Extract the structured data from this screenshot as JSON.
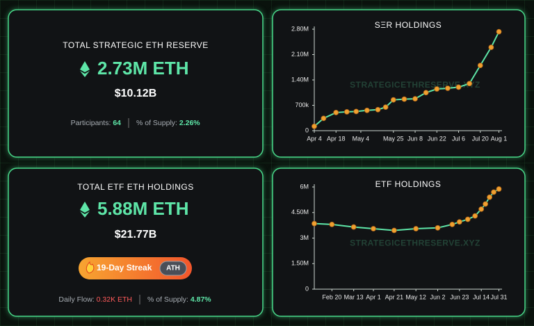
{
  "reserve_card": {
    "title": "TOTAL STRATEGIC ETH RESERVE",
    "amount": "2.73M ETH",
    "usd": "$10.12B",
    "participants_label": "Participants:",
    "participants": 64,
    "supply_label": "% of Supply:",
    "supply": "2.26%"
  },
  "etf_card": {
    "title": "TOTAL ETF ETH HOLDINGS",
    "amount": "5.88M ETH",
    "usd": "$21.77B",
    "streak": "19-Day Streak",
    "badge": "ATH",
    "flow_label": "Daily Flow:",
    "flow": "0.32K ETH",
    "supply_label": "% of Supply:",
    "supply": "4.87%"
  },
  "chart_data": [
    {
      "type": "line",
      "title": "SΞR HOLDINGS",
      "watermark": "STRATEGICETHRESERVE.XYZ",
      "color": "#5ee6a8",
      "marker_color": "#f0a030",
      "x": [
        "Apr 4",
        "Apr 10",
        "Apr 18",
        "Apr 25",
        "May 1",
        "May 8",
        "May 15",
        "May 20",
        "May 25",
        "Jun 1",
        "Jun 8",
        "Jun 15",
        "Jun 22",
        "Jun 29",
        "Jul 6",
        "Jul 13",
        "Jul 20",
        "Jul 27",
        "Aug 1"
      ],
      "values": [
        120000,
        340000,
        500000,
        520000,
        530000,
        560000,
        580000,
        650000,
        850000,
        870000,
        880000,
        1050000,
        1150000,
        1170000,
        1200000,
        1300000,
        1800000,
        2300000,
        2730000
      ],
      "xlim": [
        "Apr 4",
        "Aug 3"
      ],
      "xticks": [
        "Apr 4",
        "Apr 18",
        "May 4",
        "May 25",
        "Jun 8",
        "Jun 22",
        "Jul 6",
        "Jul 20",
        "Aug 1"
      ],
      "ylim": [
        0,
        2800000
      ],
      "yticks": [
        0,
        {
          "value": 700000,
          "label": "700k"
        },
        {
          "value": 1400000,
          "label": "1.40M"
        },
        {
          "value": 2100000,
          "label": "2.10M"
        },
        {
          "value": 2800000,
          "label": "2.80M"
        }
      ]
    },
    {
      "type": "line",
      "title": "ETF HOLDINGS",
      "watermark": "STRATEGICETHRESERVE.XYZ",
      "color": "#5ee6a8",
      "marker_color": "#f0a030",
      "x": [
        "Feb 3",
        "Feb 20",
        "Mar 13",
        "Apr 1",
        "Apr 21",
        "May 12",
        "Jun 2",
        "Jun 16",
        "Jun 23",
        "Jul 1",
        "Jul 8",
        "Jul 14",
        "Jul 18",
        "Jul 22",
        "Jul 26",
        "Jul 31"
      ],
      "values": [
        3850000,
        3800000,
        3650000,
        3550000,
        3450000,
        3550000,
        3600000,
        3800000,
        3950000,
        4100000,
        4300000,
        4700000,
        5000000,
        5400000,
        5700000,
        5880000
      ],
      "xlim": [
        "Feb 3",
        "Aug 3"
      ],
      "xticks": [
        "Feb 20",
        "Mar 13",
        "Apr 1",
        "Apr 21",
        "May 12",
        "Jun 2",
        "Jun 23",
        "Jul 14",
        "Jul 31"
      ],
      "ylim": [
        0,
        6000000
      ],
      "yticks": [
        0,
        {
          "value": 1500000,
          "label": "1.50M"
        },
        {
          "value": 3000000,
          "label": "3M"
        },
        {
          "value": 4500000,
          "label": "4.50M"
        },
        {
          "value": 6000000,
          "label": "6M"
        }
      ]
    }
  ]
}
